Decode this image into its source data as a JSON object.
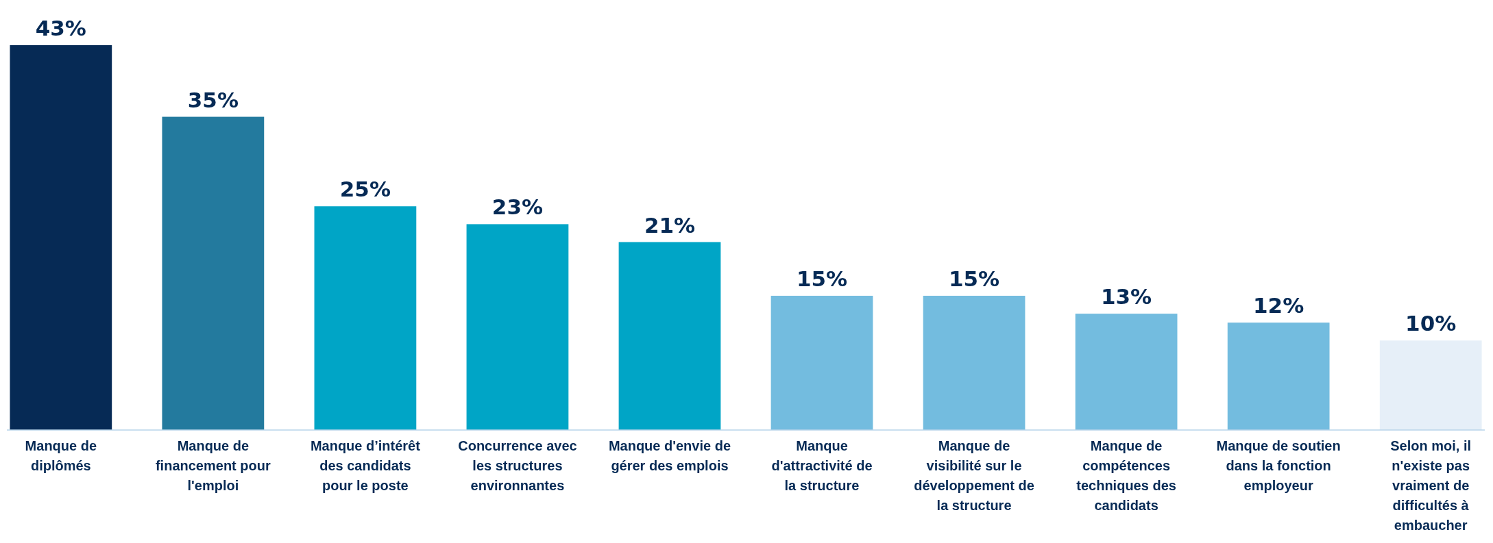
{
  "chart_data": {
    "type": "bar",
    "categories": [
      "Manque de diplômés",
      "Manque de financement pour l'emploi",
      "Manque d’intérêt des candidats pour le poste",
      "Concurrence avec les structures environnantes",
      "Manque d'envie de gérer des emplois",
      "Manque d'attractivité de la structure",
      "Manque de visibilité sur le développement de la structure",
      "Manque de compétences techniques des candidats",
      "Manque de soutien dans la fonction employeur",
      "Selon moi, il n'existe pas vraiment de difficultés à embaucher"
    ],
    "values": [
      43,
      35,
      25,
      23,
      21,
      15,
      15,
      13,
      12,
      10
    ],
    "colors": [
      "#062a55",
      "#237a9e",
      "#00a5c6",
      "#00a5c6",
      "#00a5c6",
      "#73bcdf",
      "#73bcdf",
      "#73bcdf",
      "#73bcdf",
      "#e6eff8"
    ],
    "value_labels": [
      "43%",
      "35%",
      "25%",
      "23%",
      "21%",
      "15%",
      "15%",
      "13%",
      "12%",
      "10%"
    ],
    "ylim": [
      0,
      43
    ]
  }
}
